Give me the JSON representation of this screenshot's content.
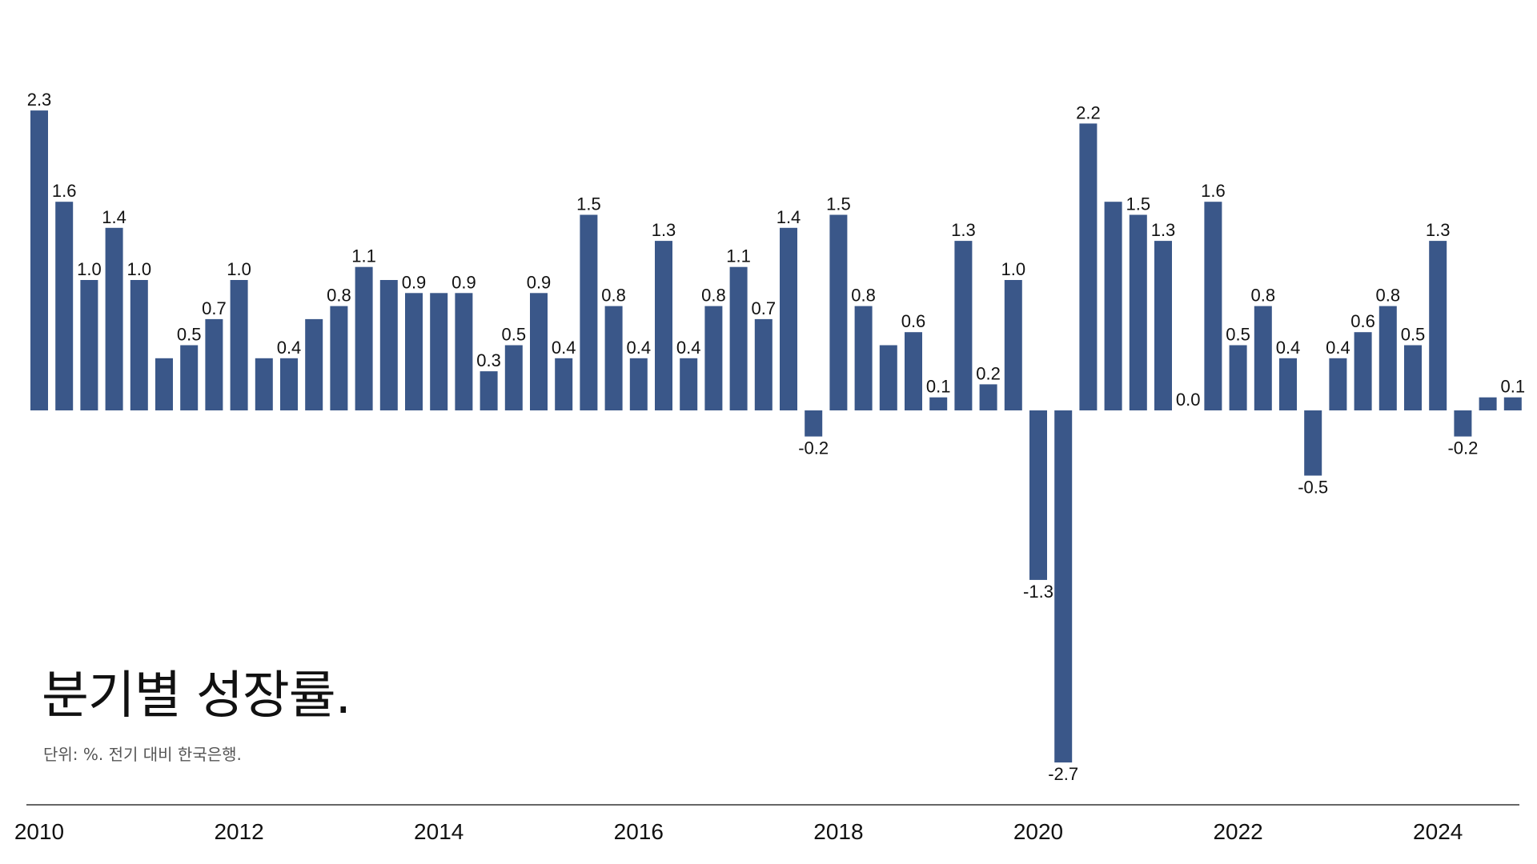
{
  "chart_data": {
    "type": "bar",
    "title": "분기별 성장률.",
    "subtitle": "단위: %. 전기 대비 한국은행.",
    "categories": [
      "2010 Q1",
      "2010 Q2",
      "2010 Q3",
      "2010 Q4",
      "2011 Q1",
      "2011 Q2",
      "2011 Q3",
      "2011 Q4",
      "2012 Q1",
      "2012 Q2",
      "2012 Q3",
      "2012 Q4",
      "2013 Q1",
      "2013 Q2",
      "2013 Q3",
      "2013 Q4",
      "2014 Q1",
      "2014 Q2",
      "2014 Q3",
      "2014 Q4",
      "2015 Q1",
      "2015 Q2",
      "2015 Q3",
      "2015 Q4",
      "2016 Q1",
      "2016 Q2",
      "2016 Q3",
      "2016 Q4",
      "2017 Q1",
      "2017 Q2",
      "2017 Q3",
      "2017 Q4",
      "2018 Q1",
      "2018 Q2",
      "2018 Q3",
      "2018 Q4",
      "2019 Q1",
      "2019 Q2",
      "2019 Q3",
      "2019 Q4",
      "2020 Q1",
      "2020 Q2",
      "2020 Q3",
      "2020 Q4",
      "2021 Q1",
      "2021 Q2",
      "2021 Q3",
      "2021 Q4",
      "2022 Q1",
      "2022 Q2",
      "2022 Q3",
      "2022 Q4",
      "2023 Q1",
      "2023 Q2",
      "2023 Q3",
      "2023 Q4",
      "2024 Q1",
      "2024 Q2",
      "2024 Q3",
      "2024 Q4"
    ],
    "values": [
      2.3,
      1.6,
      1.0,
      1.4,
      1.0,
      0.4,
      0.5,
      0.7,
      1.0,
      0.4,
      0.4,
      0.7,
      0.8,
      1.1,
      1.0,
      0.9,
      0.9,
      0.9,
      0.3,
      0.5,
      0.9,
      0.4,
      1.5,
      0.8,
      0.4,
      1.3,
      0.4,
      0.8,
      1.1,
      0.7,
      1.4,
      -0.2,
      1.5,
      0.8,
      0.5,
      0.6,
      0.1,
      1.3,
      0.2,
      1.0,
      -1.3,
      -2.7,
      2.2,
      1.6,
      1.5,
      1.3,
      0.0,
      1.6,
      0.5,
      0.8,
      0.4,
      -0.5,
      0.4,
      0.6,
      0.8,
      0.5,
      1.3,
      -0.2,
      0.1,
      0.1
    ],
    "data_labels": [
      "2.3",
      "1.6",
      "1.0",
      "1.4",
      "1.0",
      "",
      "0.5",
      "0.7",
      "1.0",
      "",
      "0.4",
      "",
      "0.8",
      "1.1",
      "",
      "0.9",
      "",
      "0.9",
      "0.3",
      "0.5",
      "0.9",
      "0.4",
      "1.5",
      "0.8",
      "0.4",
      "1.3",
      "0.4",
      "0.8",
      "1.1",
      "0.7",
      "1.4",
      "-0.2",
      "1.5",
      "0.8",
      "",
      "0.6",
      "0.1",
      "1.3",
      "0.2",
      "1.0",
      "-1.3",
      "-2.7",
      "2.2",
      "",
      "1.5",
      "1.3",
      "0.0",
      "1.6",
      "0.5",
      "0.8",
      "0.4",
      "-0.5",
      "0.4",
      "0.6",
      "0.8",
      "0.5",
      "1.3",
      "-0.2",
      "",
      "0.1"
    ],
    "x_ticks": [
      "2010",
      "2012",
      "2014",
      "2016",
      "2018",
      "2020",
      "2022",
      "2024"
    ],
    "bar_color": "#3a5789",
    "ylim": [
      -3.0,
      2.5
    ],
    "grid": false,
    "legend": "none"
  }
}
